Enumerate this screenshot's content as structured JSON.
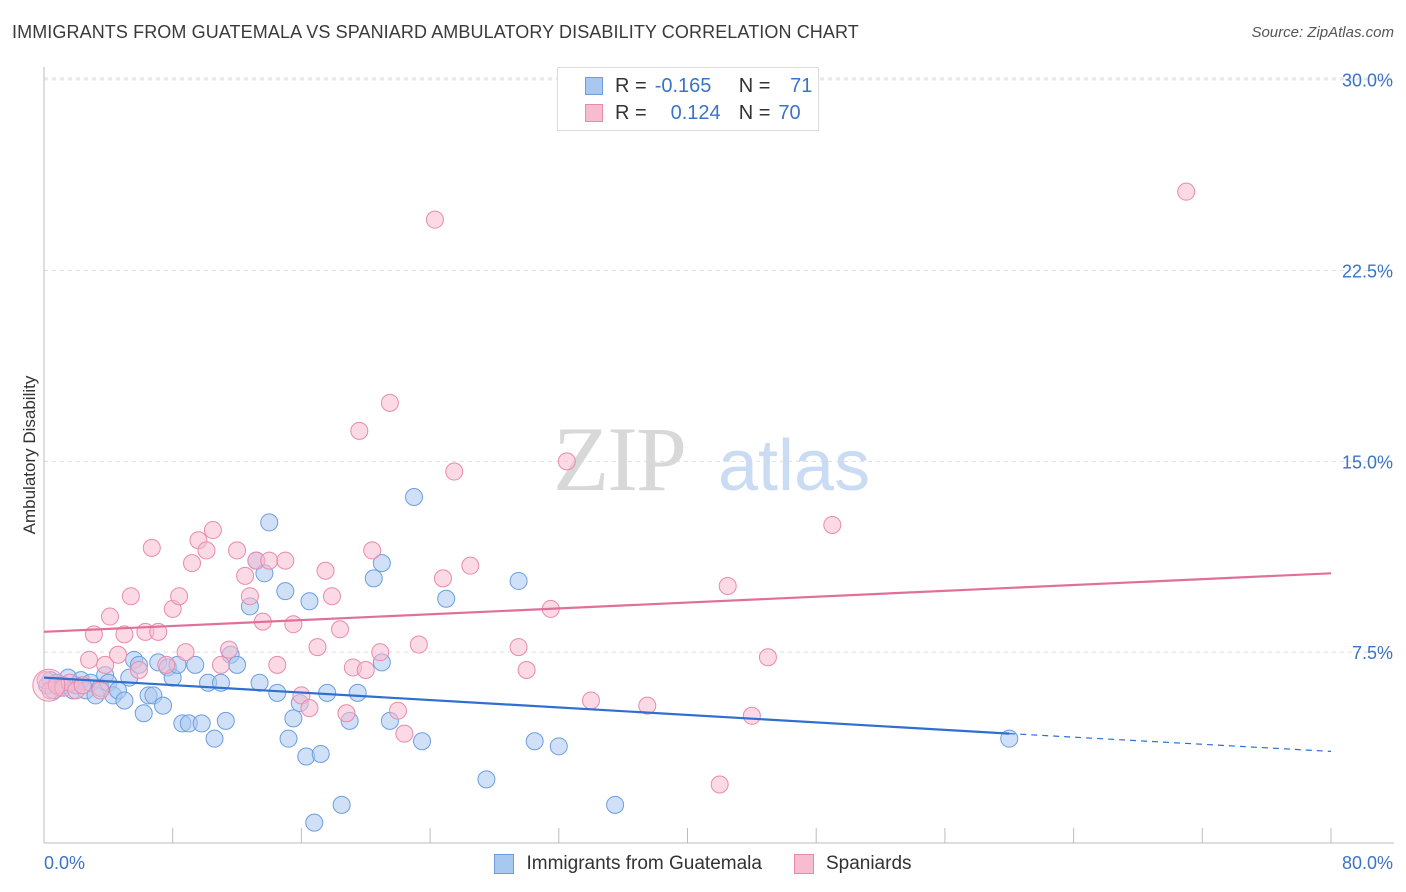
{
  "title": "IMMIGRANTS FROM GUATEMALA VS SPANIARD AMBULATORY DISABILITY CORRELATION CHART",
  "source": "Source: ZipAtlas.com",
  "watermark": {
    "zip": "ZIP",
    "atlas": "atlas"
  },
  "legend_top": [
    {
      "r_label": "R =",
      "r_value": "-0.165",
      "n_label": "N =",
      "n_value": "71",
      "color": "#a9c8f0",
      "border": "#6c9ee0"
    },
    {
      "r_label": "R =",
      "r_value": "0.124",
      "n_label": "N =",
      "n_value": "70",
      "color": "#f7bcd0",
      "border": "#e98aac"
    }
  ],
  "chart_data": {
    "type": "scatter",
    "title": "IMMIGRANTS FROM GUATEMALA VS SPANIARD AMBULATORY DISABILITY CORRELATION CHART",
    "xlabel": "",
    "ylabel": "Ambulatory Disability",
    "xlim": [
      0,
      80
    ],
    "ylim": [
      0,
      30.5
    ],
    "x_tick_labels": [
      "0.0%",
      "80.0%"
    ],
    "y_ticks": [
      7.5,
      15.0,
      22.5,
      30.0
    ],
    "y_tick_labels": [
      "7.5%",
      "15.0%",
      "22.5%",
      "30.0%"
    ],
    "grid": true,
    "series": [
      {
        "name": "Immigrants from Guatemala",
        "color": "#a9c8f0",
        "edge": "#6c9ee0",
        "line_color": "#2f6fd0",
        "trend": {
          "x0": 0,
          "y0": 6.5,
          "x1": 60,
          "y1": 4.3,
          "dash_to_x": 80,
          "dash_to_y": 3.6
        },
        "points": [
          [
            0.2,
            6.2
          ],
          [
            0.4,
            6.4
          ],
          [
            0.6,
            6.0
          ],
          [
            0.8,
            6.3
          ],
          [
            1.0,
            6.1
          ],
          [
            1.2,
            6.2
          ],
          [
            1.5,
            6.5
          ],
          [
            1.8,
            6.0
          ],
          [
            2.0,
            6.2
          ],
          [
            2.3,
            6.4
          ],
          [
            2.6,
            6.0
          ],
          [
            2.9,
            6.3
          ],
          [
            3.2,
            5.8
          ],
          [
            3.5,
            6.1
          ],
          [
            3.8,
            6.6
          ],
          [
            4.0,
            6.3
          ],
          [
            4.3,
            5.8
          ],
          [
            4.6,
            6.0
          ],
          [
            5.0,
            5.6
          ],
          [
            5.3,
            6.5
          ],
          [
            5.6,
            7.2
          ],
          [
            5.9,
            7.0
          ],
          [
            6.2,
            5.1
          ],
          [
            6.5,
            5.8
          ],
          [
            6.8,
            5.8
          ],
          [
            7.1,
            7.1
          ],
          [
            7.4,
            5.4
          ],
          [
            7.7,
            6.9
          ],
          [
            8.0,
            6.5
          ],
          [
            8.3,
            7.0
          ],
          [
            8.6,
            4.7
          ],
          [
            9.0,
            4.7
          ],
          [
            9.4,
            7.0
          ],
          [
            9.8,
            4.7
          ],
          [
            10.2,
            6.3
          ],
          [
            10.6,
            4.1
          ],
          [
            11.0,
            6.3
          ],
          [
            11.3,
            4.8
          ],
          [
            11.6,
            7.4
          ],
          [
            12.0,
            7.0
          ],
          [
            12.8,
            9.3
          ],
          [
            13.2,
            11.1
          ],
          [
            13.4,
            6.3
          ],
          [
            13.7,
            10.6
          ],
          [
            14.0,
            12.6
          ],
          [
            14.5,
            5.9
          ],
          [
            15.0,
            9.9
          ],
          [
            15.2,
            4.1
          ],
          [
            15.5,
            4.9
          ],
          [
            15.9,
            5.5
          ],
          [
            16.3,
            3.4
          ],
          [
            16.5,
            9.5
          ],
          [
            16.8,
            0.8
          ],
          [
            17.2,
            3.5
          ],
          [
            17.6,
            5.9
          ],
          [
            18.5,
            1.5
          ],
          [
            19.0,
            4.8
          ],
          [
            19.5,
            5.9
          ],
          [
            20.5,
            10.4
          ],
          [
            21.0,
            11.0
          ],
          [
            21.0,
            7.1
          ],
          [
            21.5,
            4.8
          ],
          [
            23.0,
            13.6
          ],
          [
            23.5,
            4.0
          ],
          [
            25.0,
            9.6
          ],
          [
            27.5,
            2.5
          ],
          [
            29.5,
            10.3
          ],
          [
            30.5,
            4.0
          ],
          [
            32.0,
            3.8
          ],
          [
            35.5,
            1.5
          ],
          [
            60.0,
            4.1
          ]
        ]
      },
      {
        "name": "Spaniards",
        "color": "#f7bcd0",
        "edge": "#e98aac",
        "line_color": "#e0709a",
        "trend": {
          "x0": 0,
          "y0": 8.3,
          "x1": 80,
          "y1": 10.6
        },
        "points": [
          [
            0.1,
            6.4
          ],
          [
            0.4,
            6.0
          ],
          [
            0.8,
            6.2
          ],
          [
            1.2,
            6.1
          ],
          [
            1.6,
            6.3
          ],
          [
            2.0,
            6.0
          ],
          [
            2.4,
            6.2
          ],
          [
            2.8,
            7.2
          ],
          [
            3.1,
            8.2
          ],
          [
            3.5,
            6.0
          ],
          [
            3.8,
            7.0
          ],
          [
            4.1,
            8.9
          ],
          [
            4.6,
            7.4
          ],
          [
            5.0,
            8.2
          ],
          [
            5.4,
            9.7
          ],
          [
            5.9,
            6.8
          ],
          [
            6.3,
            8.3
          ],
          [
            6.7,
            11.6
          ],
          [
            7.1,
            8.3
          ],
          [
            7.6,
            7.0
          ],
          [
            8.0,
            9.2
          ],
          [
            8.4,
            9.7
          ],
          [
            8.8,
            7.5
          ],
          [
            9.2,
            11.0
          ],
          [
            9.6,
            11.9
          ],
          [
            10.1,
            11.5
          ],
          [
            10.5,
            12.3
          ],
          [
            11.0,
            7.0
          ],
          [
            11.5,
            7.6
          ],
          [
            12.0,
            11.5
          ],
          [
            12.5,
            10.5
          ],
          [
            12.8,
            9.7
          ],
          [
            13.2,
            11.1
          ],
          [
            13.6,
            8.7
          ],
          [
            14.0,
            11.1
          ],
          [
            14.5,
            7.0
          ],
          [
            15.0,
            11.1
          ],
          [
            15.5,
            8.6
          ],
          [
            16.0,
            5.8
          ],
          [
            16.5,
            5.3
          ],
          [
            17.0,
            7.7
          ],
          [
            17.5,
            10.7
          ],
          [
            17.9,
            9.7
          ],
          [
            18.4,
            8.4
          ],
          [
            18.8,
            5.1
          ],
          [
            19.2,
            6.9
          ],
          [
            19.6,
            16.2
          ],
          [
            20.0,
            6.8
          ],
          [
            20.4,
            11.5
          ],
          [
            20.9,
            7.5
          ],
          [
            21.5,
            17.3
          ],
          [
            22.0,
            5.2
          ],
          [
            22.4,
            4.3
          ],
          [
            23.3,
            7.8
          ],
          [
            24.3,
            24.5
          ],
          [
            24.8,
            10.4
          ],
          [
            25.5,
            14.6
          ],
          [
            26.5,
            10.9
          ],
          [
            29.5,
            7.7
          ],
          [
            30.0,
            6.8
          ],
          [
            31.5,
            9.2
          ],
          [
            32.5,
            15.0
          ],
          [
            34.0,
            5.6
          ],
          [
            37.5,
            5.4
          ],
          [
            42.0,
            2.3
          ],
          [
            42.5,
            10.1
          ],
          [
            44.0,
            5.0
          ],
          [
            45.0,
            7.3
          ],
          [
            49.0,
            12.5
          ],
          [
            71.0,
            25.6
          ]
        ]
      }
    ]
  },
  "extra_pink_points_note": "",
  "legend_bottom": [
    {
      "label": "Immigrants from Guatemala",
      "color": "#a9c8f0",
      "border": "#6c9ee0"
    },
    {
      "label": "Spaniards",
      "color": "#f7bcd0",
      "border": "#e98aac"
    }
  ]
}
